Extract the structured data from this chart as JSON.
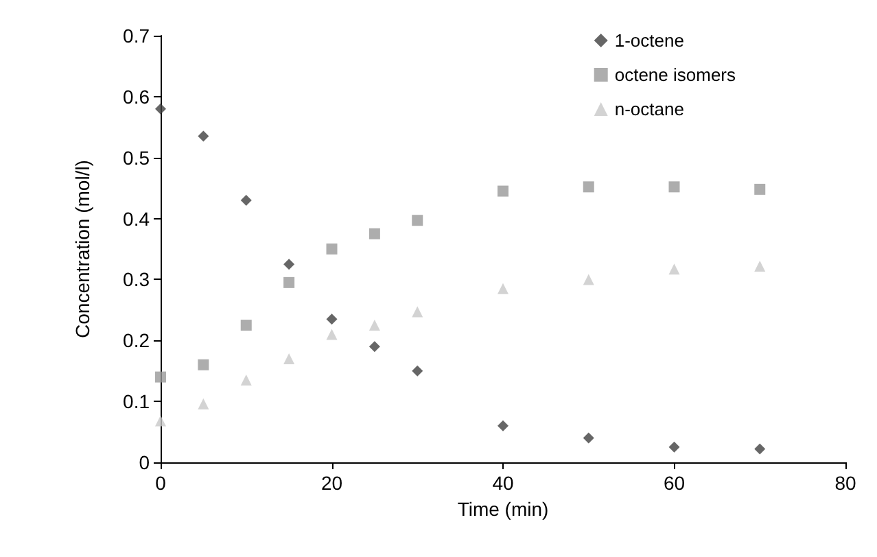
{
  "chart_data": {
    "type": "scatter",
    "xlabel": "Time (min)",
    "ylabel": "Concentration (mol/l)",
    "x": [
      0,
      5,
      10,
      15,
      20,
      25,
      30,
      40,
      50,
      60,
      70
    ],
    "series": [
      {
        "name": "1-octene",
        "color": "#404040",
        "marker": "diamond",
        "values": [
          0.58,
          0.535,
          0.43,
          0.325,
          0.235,
          0.19,
          0.15,
          0.06,
          0.04,
          0.025,
          0.022
        ]
      },
      {
        "name": "octene isomers",
        "color": "#999999",
        "marker": "square",
        "values": [
          0.14,
          0.16,
          0.225,
          0.295,
          0.35,
          0.375,
          0.397,
          0.445,
          0.452,
          0.452,
          0.448
        ]
      },
      {
        "name": "n-octane",
        "color": "#c8c8c8",
        "marker": "triangle",
        "values": [
          0.068,
          0.096,
          0.135,
          0.17,
          0.21,
          0.225,
          0.247,
          0.285,
          0.3,
          0.317,
          0.322
        ]
      }
    ],
    "xlim": [
      0,
      80
    ],
    "xticks": [
      0,
      20,
      40,
      60,
      80
    ],
    "ylim": [
      0,
      0.7
    ],
    "yticks": [
      0,
      0.1,
      0.2,
      0.3,
      0.4,
      0.5,
      0.6,
      0.7
    ],
    "grid": false,
    "legend": "top right"
  }
}
